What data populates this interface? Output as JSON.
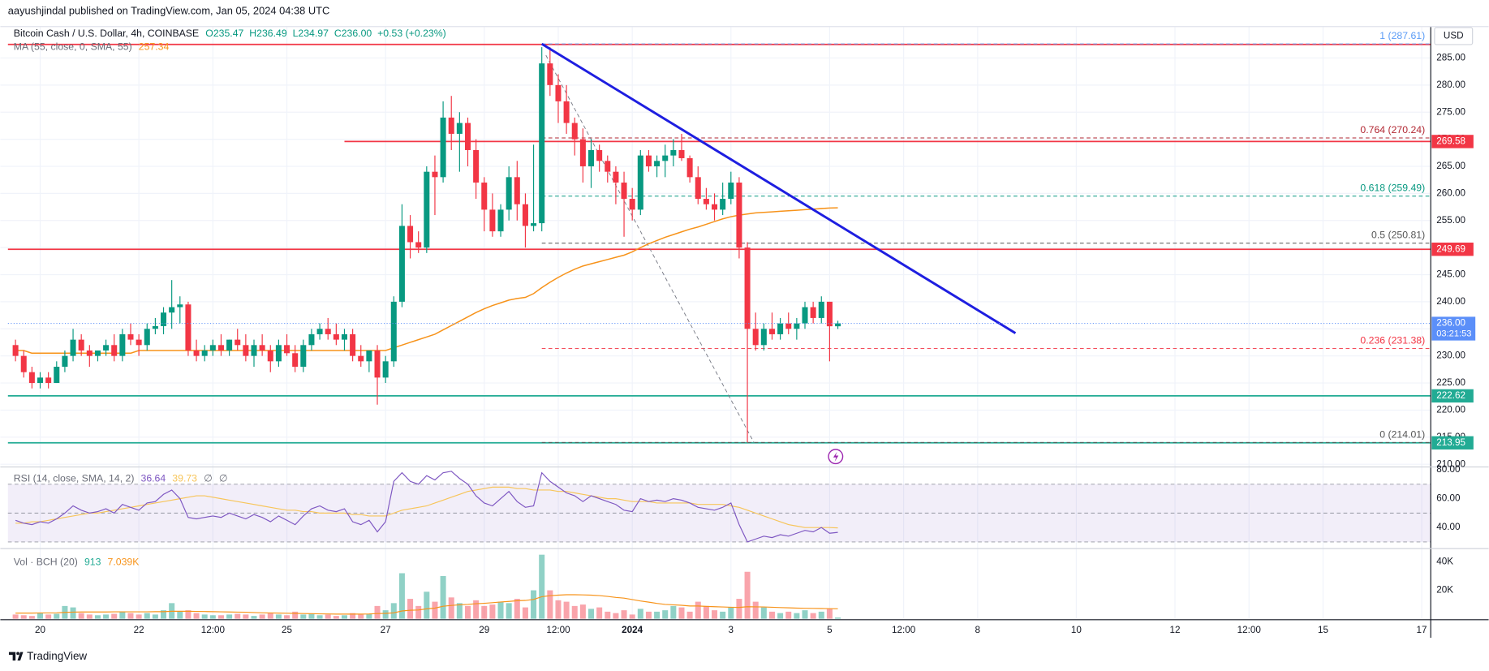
{
  "header": "aayushjindal published on TradingView.com, Jan 05, 2024 04:38 UTC",
  "footer": "TradingView",
  "chart_data": {
    "type": "candlestick",
    "title": "Bitcoin Cash / U.S. Dollar, 4h, COINBASE",
    "ohlc_legend": [
      "O235.47",
      "H236.49",
      "L234.97",
      "C236.00",
      "+0.53 (+0.23%)"
    ],
    "currency": "USD",
    "up_color": "#089981",
    "down_color": "#f23645",
    "grid": true,
    "open": [
      232,
      230,
      227,
      225,
      226,
      225,
      228,
      230,
      233,
      231,
      230,
      231,
      232,
      230,
      234,
      233,
      232,
      235,
      235.5,
      238,
      239,
      239.5,
      231,
      230,
      231,
      232,
      231,
      233,
      232,
      230,
      232,
      231,
      229,
      232,
      230.5,
      228,
      232,
      234,
      235,
      234,
      233,
      234,
      230,
      229,
      231,
      226,
      229,
      240,
      254,
      251,
      250,
      264,
      263,
      274,
      271,
      273,
      268,
      262,
      257,
      253,
      257,
      263,
      258,
      254,
      254.5,
      284,
      280,
      277,
      273,
      270,
      265,
      268,
      266,
      264,
      262,
      259,
      257,
      267,
      265,
      266,
      267,
      268,
      266.5,
      263,
      259,
      258,
      257,
      259,
      262,
      250,
      235,
      232,
      235,
      234,
      236,
      235,
      236,
      239,
      237,
      240,
      235.47
    ],
    "high": [
      233,
      231,
      228,
      227,
      227,
      229,
      231,
      235,
      234,
      232,
      231,
      233,
      234,
      235,
      236,
      234,
      236,
      237,
      239,
      244,
      241,
      240,
      233,
      232,
      233,
      234,
      233,
      235,
      234,
      233,
      234,
      232,
      233,
      234,
      232,
      233,
      235,
      236,
      237,
      236,
      235,
      235,
      232,
      231,
      232,
      230,
      241,
      258,
      256,
      253,
      265,
      267,
      277,
      278,
      275,
      274,
      270,
      263,
      260,
      258,
      265,
      266,
      260,
      269,
      287,
      287,
      282,
      280,
      274,
      272,
      270,
      269,
      267,
      265,
      264,
      261,
      268,
      268,
      267,
      269,
      270,
      271,
      267,
      265,
      261,
      260,
      262,
      264,
      263,
      251,
      238,
      236,
      238,
      237,
      238,
      237,
      240,
      240,
      241,
      240,
      236.49
    ],
    "low": [
      229,
      226,
      224,
      224,
      224,
      225,
      227,
      229,
      230,
      228,
      229,
      230,
      229,
      229,
      232,
      230,
      231,
      234,
      234,
      235,
      236,
      230,
      229,
      229,
      230,
      230,
      230,
      231,
      229,
      228,
      230,
      227,
      228,
      230,
      227,
      227,
      231,
      233,
      233,
      232,
      231,
      229,
      228,
      227,
      221,
      225,
      228,
      239,
      248,
      249,
      249,
      256,
      262,
      268,
      264,
      265,
      259,
      253,
      252,
      252,
      255,
      255,
      250,
      253,
      253,
      278,
      273,
      271,
      267,
      262,
      261,
      264,
      262,
      258,
      252,
      255,
      256,
      264,
      263,
      263,
      265,
      266,
      262,
      258,
      257,
      255,
      256,
      258,
      248,
      214,
      231,
      231,
      233,
      233,
      234,
      233,
      235,
      236,
      236,
      229,
      234.97
    ],
    "close": [
      230,
      227,
      225,
      226,
      225,
      228,
      230,
      233,
      231,
      230,
      231,
      232,
      230,
      234,
      233,
      232,
      235,
      235.5,
      238,
      239,
      239.5,
      231,
      230,
      231,
      232,
      231,
      233,
      232,
      230,
      232,
      231,
      229,
      232,
      230.5,
      228,
      232,
      234,
      235,
      234,
      233,
      234,
      230,
      229,
      231,
      226,
      229,
      240,
      254,
      251,
      250,
      264,
      263,
      274,
      271,
      273,
      268,
      262,
      257,
      253,
      257,
      263,
      258,
      254,
      254.5,
      284,
      280,
      277,
      273,
      270,
      265,
      268,
      266,
      264,
      262,
      259,
      257,
      267,
      265,
      266,
      267,
      268,
      266.5,
      263,
      259,
      258,
      257,
      259,
      262,
      250,
      235,
      232,
      235,
      234,
      236,
      235,
      236,
      239,
      237,
      240,
      235.47,
      236
    ],
    "xlim": [
      -0.92,
      172.1
    ],
    "xticks": [
      {
        "value": 3,
        "label": "20"
      },
      {
        "value": 15,
        "label": "22"
      },
      {
        "value": 24,
        "label": "12:00"
      },
      {
        "value": 33,
        "label": "25"
      },
      {
        "value": 45,
        "label": "27"
      },
      {
        "value": 57,
        "label": "29"
      },
      {
        "value": 66,
        "label": "12:00"
      },
      {
        "value": 75,
        "label": "2024",
        "bold": true
      },
      {
        "value": 87,
        "label": "3"
      },
      {
        "value": 99,
        "label": "5"
      },
      {
        "value": 108,
        "label": "12:00"
      },
      {
        "value": 117,
        "label": "8"
      },
      {
        "value": 129,
        "label": "10"
      },
      {
        "value": 141,
        "label": "12"
      },
      {
        "value": 150,
        "label": "12:00"
      },
      {
        "value": 159,
        "label": "15"
      },
      {
        "value": 171,
        "label": "17"
      }
    ],
    "ylim": [
      209.5,
      290.8
    ],
    "yticks": [
      {
        "value": 210,
        "label": "210.00"
      },
      {
        "value": 215,
        "label": "215.00"
      },
      {
        "value": 220,
        "label": "220.00"
      },
      {
        "value": 225,
        "label": "225.00"
      },
      {
        "value": 230,
        "label": "230.00"
      },
      {
        "value": 235,
        "label": "235.00"
      },
      {
        "value": 240,
        "label": "240.00"
      },
      {
        "value": 245,
        "label": "245.00"
      },
      {
        "value": 250,
        "label": "250.00"
      },
      {
        "value": 255,
        "label": "255.00"
      },
      {
        "value": 260,
        "label": "260.00"
      },
      {
        "value": 265,
        "label": "265.00"
      },
      {
        "value": 270,
        "label": "270.00"
      },
      {
        "value": 275,
        "label": "275.00"
      },
      {
        "value": 280,
        "label": "280.00"
      },
      {
        "value": 285,
        "label": "285.00"
      }
    ],
    "ma": {
      "name": "MA (55, close, 0, SMA, 55)",
      "last": 257.34,
      "color": "#f7931a",
      "values": [
        231,
        231,
        230.5,
        230.5,
        230.5,
        230.5,
        230.5,
        230.5,
        230.5,
        230.5,
        230.5,
        230.5,
        230.5,
        230.5,
        230.5,
        231,
        231,
        231,
        231,
        231,
        231,
        231,
        231,
        231,
        231,
        231,
        231,
        231,
        231,
        231,
        231,
        231,
        231,
        231,
        231,
        231,
        231,
        231,
        231,
        231,
        231,
        231,
        231,
        231,
        231,
        231,
        231.5,
        232,
        232.5,
        233,
        233.5,
        234,
        234.8,
        235.6,
        236.4,
        237.2,
        238,
        238.7,
        239.3,
        239.8,
        240.3,
        240.6,
        240.8,
        241.5,
        242.6,
        243.6,
        244.5,
        245.3,
        246,
        246.6,
        247,
        247.4,
        247.8,
        248.2,
        248.6,
        249.2,
        250,
        250.7,
        251.3,
        251.9,
        252.4,
        252.9,
        253.4,
        253.8,
        254.3,
        254.8,
        255.3,
        255.7,
        256,
        256.2,
        256.4,
        256.5,
        256.6,
        256.7,
        256.8,
        256.9,
        257,
        257.1,
        257.2,
        257.3,
        257.34
      ]
    },
    "last_price": {
      "value": 236,
      "label": "236.00",
      "countdown": "03:21:53",
      "color": "#5b8ff9"
    },
    "price_lines": [
      {
        "value": 287.5,
        "color": "#f23645",
        "from": -0.92
      },
      {
        "value": 269.58,
        "label": "269.58",
        "color": "#f23645",
        "from": 40
      },
      {
        "value": 249.69,
        "label": "249.69",
        "color": "#f23645",
        "from": -0.92
      },
      {
        "value": 222.62,
        "label": "222.62",
        "color": "#22ab94",
        "from": -0.92
      },
      {
        "value": 213.95,
        "label": "213.95",
        "color": "#22ab94",
        "from": -0.92
      }
    ],
    "trend_line": {
      "x": [
        64,
        121.6
      ],
      "y": [
        287.6,
        234.2
      ],
      "color": "#1e1ee0"
    },
    "fib": {
      "x": [
        64.5,
        89.8
      ],
      "y": [
        285.5,
        214
      ],
      "from": 64,
      "levels": [
        {
          "label": "1 (287.61)",
          "value": 287.61,
          "color": "#5b9cf6"
        },
        {
          "label": "0.764 (270.24)",
          "value": 270.24,
          "color": "#b22833"
        },
        {
          "label": "0.618 (259.49)",
          "value": 259.49,
          "color": "#089981"
        },
        {
          "label": "0.5 (250.81)",
          "value": 250.81,
          "color": "#555555"
        },
        {
          "label": "0.236 (231.38)",
          "value": 231.38,
          "color": "#f23645"
        },
        {
          "label": "0 (214.01)",
          "value": 214.01,
          "color": "#555555"
        }
      ]
    },
    "rsi": {
      "name": "RSI (14, close, SMA, 14, 2)",
      "last": 36.64,
      "ma_last": 39.73,
      "extras": [
        "∅",
        "∅"
      ],
      "color": "#7e57c2",
      "ma_color": "#f7c55a",
      "ylim": [
        25.4,
        82
      ],
      "band": [
        30,
        70
      ],
      "mid": 50,
      "yticks": [
        {
          "value": 80,
          "label": "80.00"
        },
        {
          "value": 60,
          "label": "60.00"
        },
        {
          "value": 40,
          "label": "40.00"
        }
      ],
      "values": [
        45,
        43,
        42,
        44,
        43,
        46,
        50,
        55,
        52,
        50,
        51,
        53,
        50,
        56,
        54,
        52,
        57,
        58,
        63,
        66,
        60,
        47,
        46,
        47,
        48,
        47,
        50,
        48,
        46,
        49,
        47,
        44,
        48,
        45,
        42,
        48,
        53,
        55,
        52,
        51,
        53,
        44,
        42,
        45,
        37,
        44,
        72,
        78,
        72,
        70,
        76,
        73,
        78,
        79,
        74,
        70,
        62,
        57,
        55,
        60,
        65,
        58,
        54,
        55,
        78,
        72,
        68,
        64,
        62,
        58,
        62,
        60,
        58,
        56,
        52,
        51,
        60,
        58,
        59,
        58,
        60,
        59,
        57,
        54,
        53,
        52,
        54,
        57,
        42,
        30,
        32,
        34,
        33,
        35,
        34,
        36,
        38,
        37,
        40,
        36,
        36.64
      ],
      "ma_values": [
        43,
        43,
        44,
        44,
        45,
        46,
        47,
        48,
        49,
        50,
        50,
        51,
        52,
        53,
        54,
        55,
        56,
        57,
        58,
        59,
        60,
        61,
        62,
        62,
        61,
        60,
        59,
        58,
        57,
        56,
        55,
        54,
        53,
        52,
        52,
        51,
        51,
        50,
        50,
        50,
        50,
        49,
        49,
        48,
        48,
        48,
        50,
        52,
        53,
        54,
        55,
        57,
        59,
        61,
        63,
        65,
        66,
        67,
        68,
        68,
        68,
        67,
        67,
        66,
        66,
        66,
        65,
        65,
        64,
        63,
        62,
        61,
        60,
        60,
        59,
        58,
        58,
        58,
        57,
        57,
        57,
        57,
        57,
        56,
        56,
        56,
        56,
        55,
        54,
        52,
        50,
        48,
        46,
        44,
        42,
        41,
        40,
        40,
        40,
        40,
        39.73
      ]
    },
    "volume": {
      "name": "Vol · BCH (20)",
      "last": 913,
      "ma_last": {
        "value": 7039,
        "label": "7.039K"
      },
      "ma_color": "#f7931a",
      "ylim": [
        0,
        49300
      ],
      "yticks": [
        {
          "value": 20000,
          "label": "20K"
        },
        {
          "value": 40000,
          "label": "40K"
        }
      ],
      "values": [
        3000,
        2500,
        2000,
        4000,
        3000,
        3500,
        9000,
        8000,
        4000,
        3000,
        2500,
        3000,
        3500,
        5000,
        4000,
        3000,
        4000,
        3000,
        6000,
        11000,
        5000,
        6000,
        4000,
        3000,
        2500,
        2500,
        3000,
        3500,
        3000,
        2000,
        3000,
        4000,
        3000,
        2500,
        5000,
        3000,
        3500,
        2500,
        3000,
        2000,
        2500,
        4000,
        3000,
        3500,
        9000,
        6000,
        11000,
        32000,
        14000,
        9000,
        19000,
        12000,
        30000,
        15000,
        11000,
        9000,
        13000,
        9000,
        10000,
        12000,
        11000,
        14000,
        8000,
        20000,
        45000,
        20000,
        13000,
        12000,
        9000,
        10000,
        7000,
        8000,
        5000,
        4000,
        6000,
        3000,
        7000,
        5000,
        5000,
        6000,
        9000,
        8000,
        5000,
        12000,
        9000,
        6000,
        5000,
        8000,
        14000,
        33000,
        12000,
        8000,
        5000,
        4000,
        5000,
        4000,
        6000,
        4000,
        5000,
        7000,
        913
      ],
      "ma_values": [
        4000,
        4000,
        4000,
        4100,
        4100,
        4200,
        4500,
        4700,
        4800,
        4800,
        4800,
        4800,
        4900,
        4900,
        4900,
        4900,
        4900,
        5000,
        5000,
        5300,
        5300,
        5300,
        5200,
        5100,
        5000,
        4900,
        4800,
        4700,
        4600,
        4400,
        4200,
        4100,
        4000,
        3900,
        3800,
        3700,
        3600,
        3500,
        3400,
        3300,
        3300,
        3300,
        3300,
        3400,
        3700,
        3800,
        4200,
        5500,
        6000,
        6200,
        7000,
        7500,
        8800,
        9400,
        9800,
        10100,
        10600,
        10900,
        11300,
        11800,
        12200,
        12700,
        12900,
        13600,
        15500,
        16200,
        16600,
        16900,
        16900,
        16800,
        16600,
        16300,
        15700,
        15000,
        14500,
        13500,
        12500,
        11700,
        10800,
        10100,
        9800,
        9500,
        9000,
        9000,
        8700,
        8500,
        8300,
        8100,
        8000,
        8500,
        8400,
        8300,
        8100,
        7900,
        7700,
        7500,
        7400,
        7300,
        7200,
        7100,
        7039
      ]
    }
  }
}
